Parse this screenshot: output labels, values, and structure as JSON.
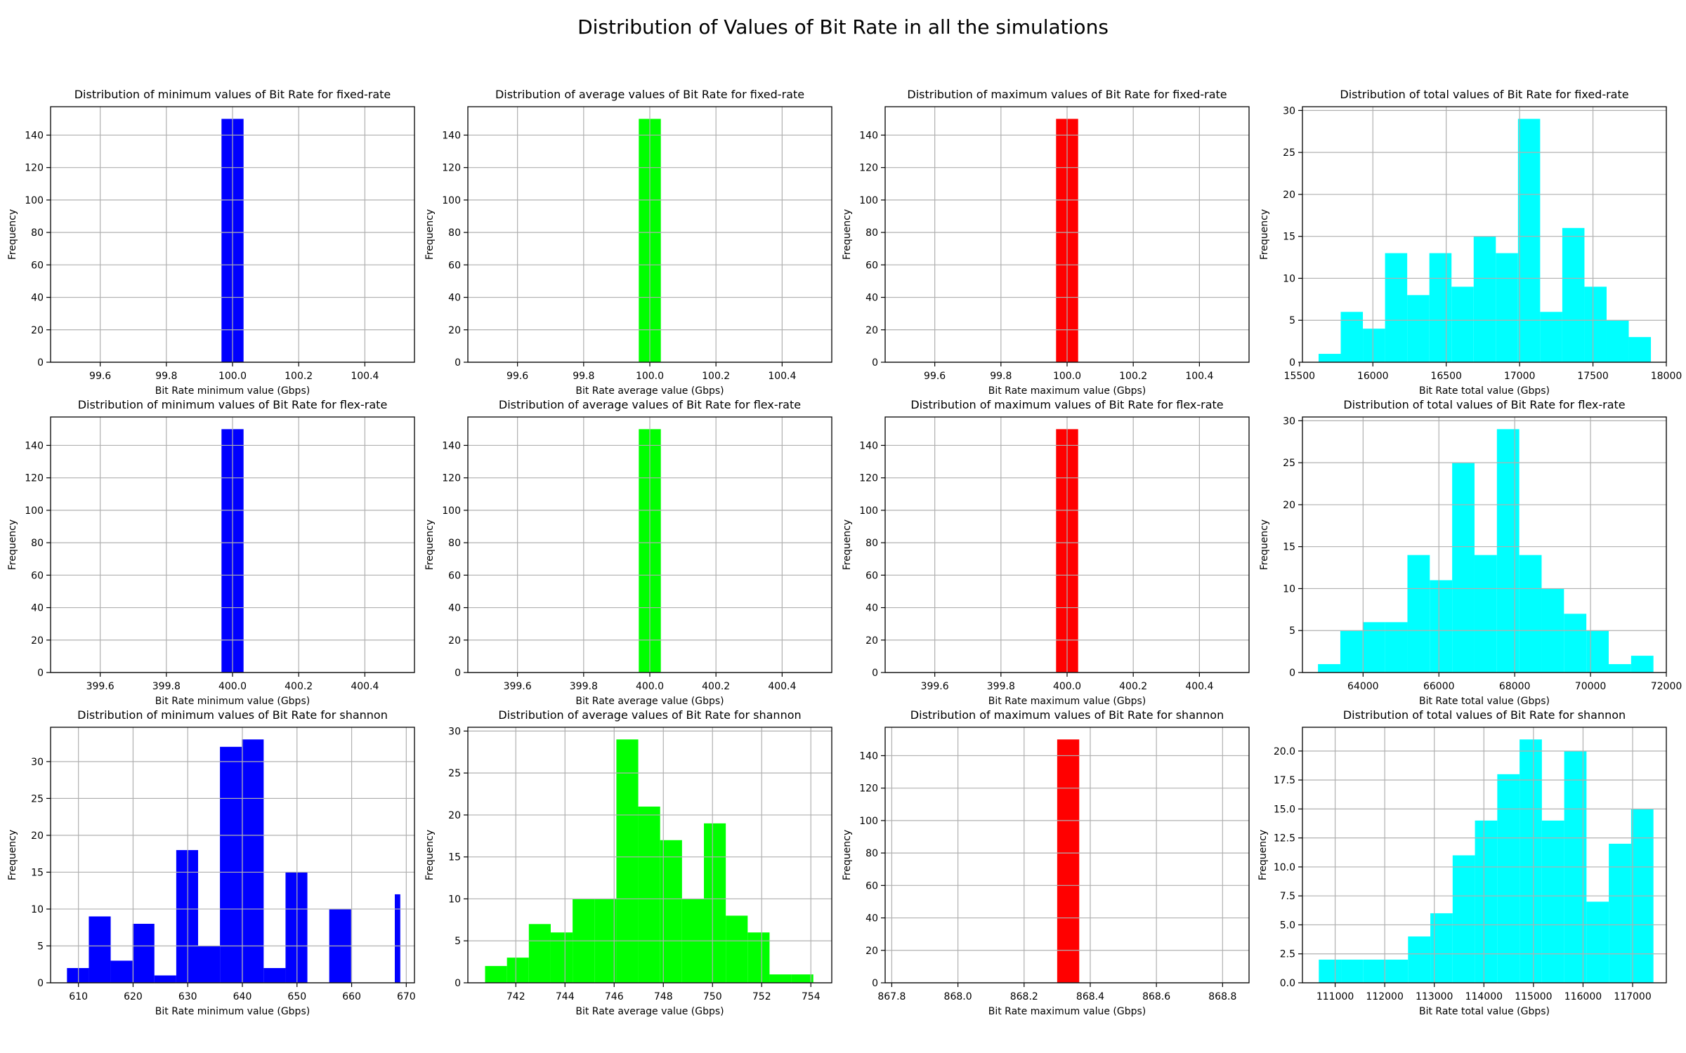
{
  "figure": {
    "title": "Distribution of Values of Bit Rate in all the simulations"
  },
  "chart_data": [
    {
      "type": "bar",
      "title": "Distribution of minimum values of Bit Rate for fixed-rate",
      "xlabel": "Bit Rate minimum value (Gbps)",
      "ylabel": "Frequency",
      "color": "#0000ff",
      "xlim": [
        99.45,
        100.55
      ],
      "ylim": [
        0,
        157.5
      ],
      "xticks": [
        99.6,
        99.8,
        100.0,
        100.2,
        100.4
      ],
      "xtick_labels": [
        "99.6",
        "99.8",
        "100.0",
        "100.2",
        "100.4"
      ],
      "yticks": [
        0,
        20,
        40,
        60,
        80,
        100,
        120,
        140
      ],
      "ytick_labels": [
        "0",
        "20",
        "40",
        "60",
        "80",
        "100",
        "120",
        "140"
      ],
      "bins": [
        [
          99.966667,
          100.033333,
          150
        ]
      ]
    },
    {
      "type": "bar",
      "title": "Distribution of average values of Bit Rate for fixed-rate",
      "xlabel": "Bit Rate average value (Gbps)",
      "ylabel": "Frequency",
      "color": "#00ff00",
      "xlim": [
        99.45,
        100.55
      ],
      "ylim": [
        0,
        157.5
      ],
      "xticks": [
        99.6,
        99.8,
        100.0,
        100.2,
        100.4
      ],
      "xtick_labels": [
        "99.6",
        "99.8",
        "100.0",
        "100.2",
        "100.4"
      ],
      "yticks": [
        0,
        20,
        40,
        60,
        80,
        100,
        120,
        140
      ],
      "ytick_labels": [
        "0",
        "20",
        "40",
        "60",
        "80",
        "100",
        "120",
        "140"
      ],
      "bins": [
        [
          99.966667,
          100.033333,
          150
        ]
      ]
    },
    {
      "type": "bar",
      "title": "Distribution of maximum values of Bit Rate  for fixed-rate",
      "xlabel": "Bit Rate maximum value (Gbps)",
      "ylabel": "Frequency",
      "color": "#ff0000",
      "xlim": [
        99.45,
        100.55
      ],
      "ylim": [
        0,
        157.5
      ],
      "xticks": [
        99.6,
        99.8,
        100.0,
        100.2,
        100.4
      ],
      "xtick_labels": [
        "99.6",
        "99.8",
        "100.0",
        "100.2",
        "100.4"
      ],
      "yticks": [
        0,
        20,
        40,
        60,
        80,
        100,
        120,
        140
      ],
      "ytick_labels": [
        "0",
        "20",
        "40",
        "60",
        "80",
        "100",
        "120",
        "140"
      ],
      "bins": [
        [
          99.966667,
          100.033333,
          150
        ]
      ]
    },
    {
      "type": "bar",
      "title": "Distribution of total values of Bit Rate  for fixed-rate",
      "xlabel": "Bit Rate total value (Gbps)",
      "ylabel": "Frequency",
      "color": "#00ffff",
      "xlim": [
        15520,
        18000
      ],
      "ylim": [
        0,
        30.45
      ],
      "xticks": [
        15500,
        16000,
        16500,
        17000,
        17500,
        18000
      ],
      "xtick_labels": [
        "15500",
        "16000",
        "16500",
        "17000",
        "17500",
        "18000"
      ],
      "yticks": [
        0,
        5,
        10,
        15,
        20,
        25,
        30
      ],
      "ytick_labels": [
        "0",
        "5",
        "10",
        "15",
        "20",
        "25",
        "30"
      ],
      "bins": [
        [
          15630,
          15781,
          1
        ],
        [
          15781,
          15932,
          6
        ],
        [
          15932,
          16083,
          4
        ],
        [
          16083,
          16234,
          13
        ],
        [
          16234,
          16385,
          8
        ],
        [
          16385,
          16536,
          13
        ],
        [
          16536,
          16687,
          9
        ],
        [
          16687,
          16838,
          15
        ],
        [
          16838,
          16989,
          13
        ],
        [
          16989,
          17140,
          29
        ],
        [
          17140,
          17291,
          6
        ],
        [
          17291,
          17442,
          16
        ],
        [
          17442,
          17593,
          9
        ],
        [
          17593,
          17744,
          5
        ],
        [
          17744,
          17895,
          3
        ]
      ]
    },
    {
      "type": "bar",
      "title": "Distribution of minimum values of Bit Rate for flex-rate",
      "xlabel": "Bit Rate minimum value (Gbps)",
      "ylabel": "Frequency",
      "color": "#0000ff",
      "xlim": [
        399.45,
        400.55
      ],
      "ylim": [
        0,
        157.5
      ],
      "xticks": [
        399.6,
        399.8,
        400.0,
        400.2,
        400.4
      ],
      "xtick_labels": [
        "399.6",
        "399.8",
        "400.0",
        "400.2",
        "400.4"
      ],
      "yticks": [
        0,
        20,
        40,
        60,
        80,
        100,
        120,
        140
      ],
      "ytick_labels": [
        "0",
        "20",
        "40",
        "60",
        "80",
        "100",
        "120",
        "140"
      ],
      "bins": [
        [
          399.966667,
          400.033333,
          150
        ]
      ]
    },
    {
      "type": "bar",
      "title": "Distribution of average values of Bit Rate for flex-rate",
      "xlabel": "Bit Rate average value (Gbps)",
      "ylabel": "Frequency",
      "color": "#00ff00",
      "xlim": [
        399.45,
        400.55
      ],
      "ylim": [
        0,
        157.5
      ],
      "xticks": [
        399.6,
        399.8,
        400.0,
        400.2,
        400.4
      ],
      "xtick_labels": [
        "399.6",
        "399.8",
        "400.0",
        "400.2",
        "400.4"
      ],
      "yticks": [
        0,
        20,
        40,
        60,
        80,
        100,
        120,
        140
      ],
      "ytick_labels": [
        "0",
        "20",
        "40",
        "60",
        "80",
        "100",
        "120",
        "140"
      ],
      "bins": [
        [
          399.966667,
          400.033333,
          150
        ]
      ]
    },
    {
      "type": "bar",
      "title": "Distribution of maximum values of Bit Rate  for flex-rate",
      "xlabel": "Bit Rate maximum value (Gbps)",
      "ylabel": "Frequency",
      "color": "#ff0000",
      "xlim": [
        399.45,
        400.55
      ],
      "ylim": [
        0,
        157.5
      ],
      "xticks": [
        399.6,
        399.8,
        400.0,
        400.2,
        400.4
      ],
      "xtick_labels": [
        "399.6",
        "399.8",
        "400.0",
        "400.2",
        "400.4"
      ],
      "yticks": [
        0,
        20,
        40,
        60,
        80,
        100,
        120,
        140
      ],
      "ytick_labels": [
        "0",
        "20",
        "40",
        "60",
        "80",
        "100",
        "120",
        "140"
      ],
      "bins": [
        [
          399.966667,
          400.033333,
          150
        ]
      ]
    },
    {
      "type": "bar",
      "title": "Distribution of total values of Bit Rate  for flex-rate",
      "xlabel": "Bit Rate total value (Gbps)",
      "ylabel": "Frequency",
      "color": "#00ffff",
      "xlim": [
        62400,
        72000
      ],
      "ylim": [
        0,
        30.45
      ],
      "xticks": [
        64000,
        66000,
        68000,
        70000,
        72000
      ],
      "xtick_labels": [
        "64000",
        "66000",
        "68000",
        "70000",
        "72000"
      ],
      "yticks": [
        0,
        5,
        10,
        15,
        20,
        25,
        30
      ],
      "ytick_labels": [
        "0",
        "5",
        "10",
        "15",
        "20",
        "25",
        "30"
      ],
      "bins": [
        [
          62810,
          63400,
          1
        ],
        [
          63400,
          63990,
          5
        ],
        [
          63990,
          64580,
          6
        ],
        [
          64580,
          65170,
          6
        ],
        [
          65170,
          65760,
          14
        ],
        [
          65760,
          66350,
          11
        ],
        [
          66350,
          66940,
          25
        ],
        [
          66940,
          67530,
          14
        ],
        [
          67530,
          68120,
          29
        ],
        [
          68120,
          68710,
          14
        ],
        [
          68710,
          69300,
          10
        ],
        [
          69300,
          69890,
          7
        ],
        [
          69890,
          70480,
          5
        ],
        [
          70480,
          71070,
          1
        ],
        [
          71070,
          71660,
          2
        ]
      ]
    },
    {
      "type": "bar",
      "title": "Distribution of minimum values of Bit Rate for shannon",
      "xlabel": "Bit Rate minimum value (Gbps)",
      "ylabel": "Frequency",
      "color": "#0000ff",
      "xlim": [
        604.9,
        671.5
      ],
      "ylim": [
        0,
        34.65
      ],
      "xticks": [
        610,
        620,
        630,
        640,
        650,
        660,
        670
      ],
      "xtick_labels": [
        "610",
        "620",
        "630",
        "640",
        "650",
        "660",
        "670"
      ],
      "yticks": [
        0,
        5,
        10,
        15,
        20,
        25,
        30
      ],
      "ytick_labels": [
        "0",
        "5",
        "10",
        "15",
        "20",
        "25",
        "30"
      ],
      "bins": [
        [
          607.9,
          611.9,
          2
        ],
        [
          611.9,
          615.9,
          9
        ],
        [
          615.9,
          619.9,
          3
        ],
        [
          619.9,
          623.9,
          8
        ],
        [
          623.9,
          627.9,
          1
        ],
        [
          627.9,
          631.9,
          18
        ],
        [
          631.9,
          635.9,
          5
        ],
        [
          635.9,
          639.9,
          32
        ],
        [
          639.9,
          643.9,
          33
        ],
        [
          643.9,
          647.9,
          2
        ],
        [
          647.9,
          651.9,
          15
        ],
        [
          651.9,
          655.9,
          0
        ],
        [
          655.9,
          659.9,
          10
        ],
        [
          659.9,
          663.9,
          0
        ],
        [
          663.9,
          667.9,
          0
        ],
        [
          667.9,
          668.9,
          12
        ]
      ]
    },
    {
      "type": "bar",
      "title": "Distribution of average values of Bit Rate for shannon",
      "xlabel": "Bit Rate average value (Gbps)",
      "ylabel": "Frequency",
      "color": "#00ff00",
      "xlim": [
        740.05,
        754.85
      ],
      "ylim": [
        0,
        30.45
      ],
      "xticks": [
        742,
        744,
        746,
        748,
        750,
        752,
        754
      ],
      "xtick_labels": [
        "742",
        "744",
        "746",
        "748",
        "750",
        "752",
        "754"
      ],
      "yticks": [
        0,
        5,
        10,
        15,
        20,
        25,
        30
      ],
      "ytick_labels": [
        "0",
        "5",
        "10",
        "15",
        "20",
        "25",
        "30"
      ],
      "bins": [
        [
          740.75,
          741.64,
          2
        ],
        [
          741.64,
          742.53,
          3
        ],
        [
          742.53,
          743.42,
          7
        ],
        [
          743.42,
          744.31,
          6
        ],
        [
          744.31,
          745.2,
          10
        ],
        [
          745.2,
          746.09,
          10
        ],
        [
          746.09,
          746.98,
          29
        ],
        [
          746.98,
          747.87,
          21
        ],
        [
          747.87,
          748.76,
          17
        ],
        [
          748.76,
          749.65,
          10
        ],
        [
          749.65,
          750.54,
          19
        ],
        [
          750.54,
          751.43,
          8
        ],
        [
          751.43,
          752.32,
          6
        ],
        [
          752.32,
          753.21,
          1
        ],
        [
          753.21,
          754.1,
          1
        ]
      ]
    },
    {
      "type": "bar",
      "title": "Distribution of maximum values of Bit Rate  for shannon",
      "xlabel": "Bit Rate maximum value (Gbps)",
      "ylabel": "Frequency",
      "color": "#ff0000",
      "xlim": [
        867.78,
        868.88
      ],
      "ylim": [
        0,
        157.5
      ],
      "xticks": [
        867.8,
        868.0,
        868.2,
        868.4,
        868.6,
        868.8
      ],
      "xtick_labels": [
        "867.8",
        "868.0",
        "868.2",
        "868.4",
        "868.6",
        "868.8"
      ],
      "yticks": [
        0,
        20,
        40,
        60,
        80,
        100,
        120,
        140
      ],
      "ytick_labels": [
        "0",
        "20",
        "40",
        "60",
        "80",
        "100",
        "120",
        "140"
      ],
      "bins": [
        [
          868.3,
          868.366667,
          150
        ]
      ]
    },
    {
      "type": "bar",
      "title": "Distribution of total values of Bit Rate  for shannon",
      "xlabel": "Bit Rate total value (Gbps)",
      "ylabel": "Frequency",
      "color": "#00ffff",
      "xlim": [
        110340,
        117680
      ],
      "ylim": [
        0,
        22.05
      ],
      "xticks": [
        111000,
        112000,
        113000,
        114000,
        115000,
        116000,
        117000
      ],
      "xtick_labels": [
        "111000",
        "112000",
        "113000",
        "114000",
        "115000",
        "116000",
        "117000"
      ],
      "yticks": [
        0,
        2.5,
        5,
        7.5,
        10,
        12.5,
        15,
        17.5,
        20
      ],
      "ytick_labels": [
        "0.0",
        "2.5",
        "5.0",
        "7.5",
        "10.0",
        "12.5",
        "15.0",
        "17.5",
        "20.0"
      ],
      "bins": [
        [
          110670,
          111120,
          2
        ],
        [
          111120,
          111570,
          2
        ],
        [
          111570,
          112020,
          2
        ],
        [
          112020,
          112470,
          2
        ],
        [
          112470,
          112920,
          4
        ],
        [
          112920,
          113370,
          6
        ],
        [
          113370,
          113820,
          11
        ],
        [
          113820,
          114270,
          14
        ],
        [
          114270,
          114720,
          18
        ],
        [
          114720,
          115170,
          21
        ],
        [
          115170,
          115620,
          14
        ],
        [
          115620,
          116070,
          20
        ],
        [
          116070,
          116520,
          7
        ],
        [
          116520,
          116970,
          12
        ],
        [
          116970,
          117420,
          15
        ]
      ]
    }
  ]
}
